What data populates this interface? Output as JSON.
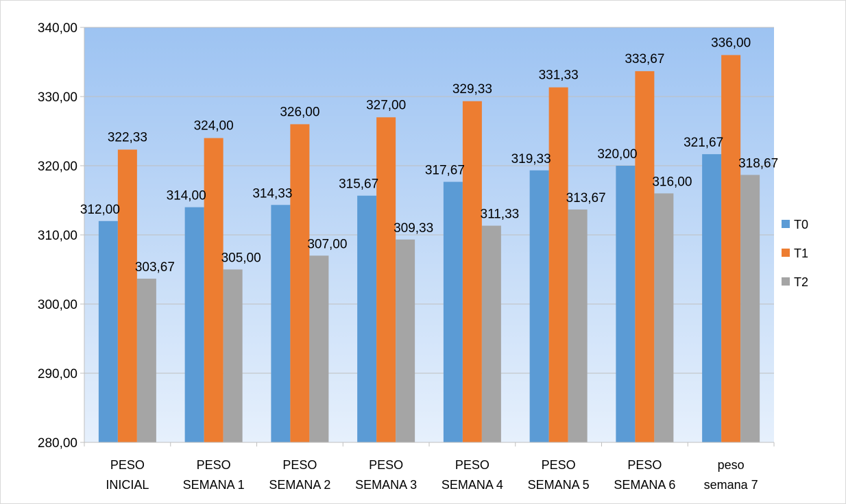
{
  "chart_data": {
    "type": "bar",
    "title": "",
    "xlabel": "",
    "ylabel": "",
    "ylim": [
      280,
      340
    ],
    "ytick_step": 10,
    "ytick_labels": [
      "280,00",
      "290,00",
      "300,00",
      "310,00",
      "320,00",
      "330,00",
      "340,00"
    ],
    "grid": true,
    "legend": "right",
    "categories": [
      [
        "PESO",
        "INICIAL"
      ],
      [
        "PESO",
        "SEMANA 1"
      ],
      [
        "PESO",
        "SEMANA 2"
      ],
      [
        "PESO",
        "SEMANA 3"
      ],
      [
        "PESO",
        "SEMANA 4"
      ],
      [
        "PESO",
        "SEMANA 5"
      ],
      [
        "PESO",
        "SEMANA 6"
      ],
      [
        "peso",
        "semana 7"
      ]
    ],
    "series": [
      {
        "name": "T0",
        "color": "#5b9bd5",
        "values": [
          312.0,
          314.0,
          314.33,
          315.67,
          317.67,
          319.33,
          320.0,
          321.67
        ],
        "labels": [
          "312,00",
          "314,00",
          "314,33",
          "315,67",
          "317,67",
          "319,33",
          "320,00",
          "321,67"
        ]
      },
      {
        "name": "T1",
        "color": "#ed7d31",
        "values": [
          322.33,
          324.0,
          326.0,
          327.0,
          329.33,
          331.33,
          333.67,
          336.0
        ],
        "labels": [
          "322,33",
          "324,00",
          "326,00",
          "327,00",
          "329,33",
          "331,33",
          "333,67",
          "336,00"
        ]
      },
      {
        "name": "T2",
        "color": "#a5a5a5",
        "values": [
          303.67,
          305.0,
          307.0,
          309.33,
          311.33,
          313.67,
          316.0,
          318.67
        ],
        "labels": [
          "303,67",
          "305,00",
          "307,00",
          "309,33",
          "311,33",
          "313,67",
          "316,00",
          "318,67"
        ]
      }
    ],
    "background_gradient": [
      "#9dc3f2",
      "#e6f0fc"
    ]
  }
}
